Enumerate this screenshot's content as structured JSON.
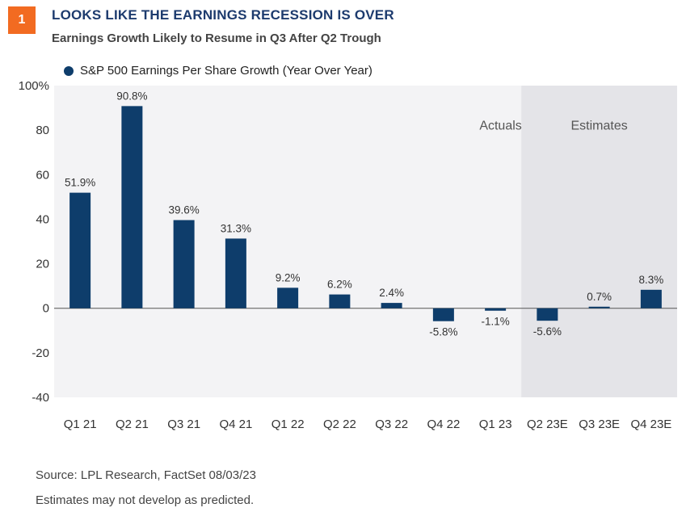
{
  "header": {
    "badge": "1",
    "title": "LOOKS LIKE THE EARNINGS RECESSION IS OVER",
    "subtitle": "Earnings Growth Likely to Resume in Q3 After Q2 Trough"
  },
  "colors": {
    "bar": "#0e3d6b",
    "plot_bg": "#f3f3f5",
    "estimates_bg": "#e4e4e8",
    "accent": "#f26b21"
  },
  "chart_data": {
    "type": "bar",
    "categories": [
      "Q1 21",
      "Q2 21",
      "Q3 21",
      "Q4 21",
      "Q1 22",
      "Q2 22",
      "Q3 22",
      "Q4 22",
      "Q1 23",
      "Q2 23E",
      "Q3 23E",
      "Q4 23E"
    ],
    "series": [
      {
        "name": "S&P 500 Earnings Per Share Growth (Year Over Year)",
        "values": [
          51.9,
          90.8,
          39.6,
          31.3,
          9.2,
          6.2,
          2.4,
          -5.8,
          -1.1,
          -5.6,
          0.7,
          8.3
        ]
      }
    ],
    "data_labels": [
      "51.9%",
      "90.8%",
      "39.6%",
      "31.3%",
      "9.2%",
      "6.2%",
      "2.4%",
      "-5.8%",
      "-1.1%",
      "-5.6%",
      "0.7%",
      "8.3%"
    ],
    "yticks": [
      100,
      80,
      60,
      40,
      20,
      0,
      -20,
      -40
    ],
    "ytick_labels": [
      "100%",
      "80",
      "60",
      "40",
      "20",
      "0",
      "-20",
      "-40"
    ],
    "ylim": [
      -40,
      100
    ],
    "region_labels": {
      "actuals": "Actuals",
      "estimates": "Estimates"
    },
    "estimates_start_index": 9,
    "legend_position": "top-left",
    "grid": false
  },
  "footer": {
    "source": "Source: LPL Research, FactSet 08/03/23",
    "note": "Estimates may not develop as predicted."
  }
}
